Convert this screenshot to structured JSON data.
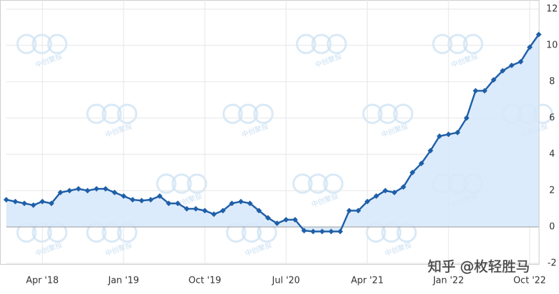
{
  "chart_data": {
    "type": "line",
    "x": [
      "2017-12",
      "2018-01",
      "2018-02",
      "2018-03",
      "2018-04",
      "2018-05",
      "2018-06",
      "2018-07",
      "2018-08",
      "2018-09",
      "2018-10",
      "2018-11",
      "2018-12",
      "2019-01",
      "2019-02",
      "2019-03",
      "2019-04",
      "2019-05",
      "2019-06",
      "2019-07",
      "2019-08",
      "2019-09",
      "2019-10",
      "2019-11",
      "2019-12",
      "2020-01",
      "2020-02",
      "2020-03",
      "2020-04",
      "2020-05",
      "2020-06",
      "2020-07",
      "2020-08",
      "2020-09",
      "2020-10",
      "2020-11",
      "2020-12",
      "2021-01",
      "2021-02",
      "2021-03",
      "2021-04",
      "2021-05",
      "2021-06",
      "2021-07",
      "2021-08",
      "2021-09",
      "2021-10",
      "2021-11",
      "2021-12",
      "2022-01",
      "2022-02",
      "2022-03",
      "2022-04",
      "2022-05",
      "2022-06",
      "2022-07",
      "2022-08",
      "2022-09",
      "2022-10",
      "2022-11"
    ],
    "series": [
      {
        "color": "#1f5fa8",
        "fill": "#d6e8fa",
        "values": [
          1.5,
          1.4,
          1.3,
          1.2,
          1.4,
          1.3,
          1.9,
          2.0,
          2.1,
          2.0,
          2.1,
          2.1,
          1.9,
          1.7,
          1.5,
          1.45,
          1.5,
          1.7,
          1.3,
          1.3,
          1.0,
          1.0,
          0.9,
          0.7,
          0.9,
          1.3,
          1.4,
          1.3,
          0.9,
          0.5,
          0.2,
          0.4,
          0.4,
          -0.2,
          -0.25,
          -0.25,
          -0.25,
          -0.25,
          0.9,
          0.9,
          1.4,
          1.7,
          2.0,
          1.9,
          2.2,
          3.0,
          3.5,
          4.2,
          5.0,
          5.1,
          5.2,
          6.0,
          7.5,
          7.5,
          8.1,
          8.6,
          8.9,
          9.1,
          9.9,
          10.6
        ]
      }
    ],
    "xlim": [
      "2017-12",
      "2022-11"
    ],
    "xticks": [
      {
        "value": "2018-04",
        "label": "Apr '18"
      },
      {
        "value": "2019-01",
        "label": "Jan '19"
      },
      {
        "value": "2019-10",
        "label": "Oct '19"
      },
      {
        "value": "2020-07",
        "label": "Jul '20"
      },
      {
        "value": "2021-04",
        "label": "Apr '21"
      },
      {
        "value": "2022-01",
        "label": "Jan '22"
      },
      {
        "value": "2022-10",
        "label": "Oct '22"
      }
    ],
    "ylim": [
      -2,
      12
    ],
    "yticks": [
      -2,
      0,
      2,
      4,
      6,
      8,
      10,
      12
    ],
    "grid": true,
    "watermark": "知乎 @枚轻胜马",
    "logo_text": "中创聚投"
  }
}
